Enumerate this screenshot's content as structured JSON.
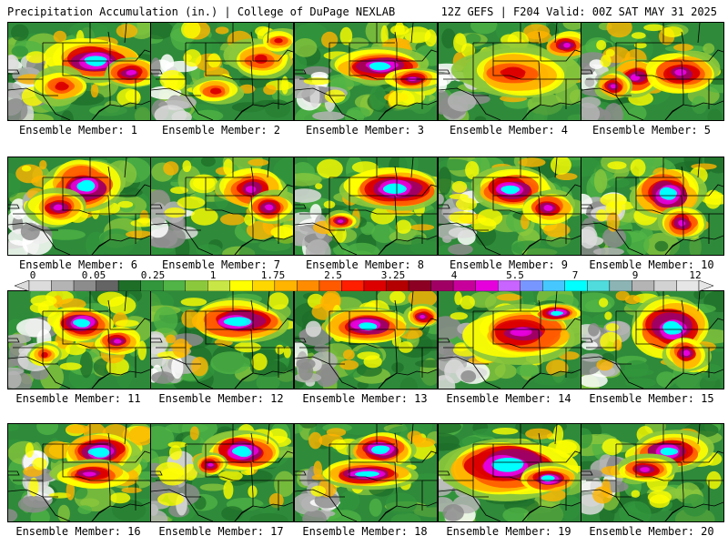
{
  "header": {
    "left": "Precipitation Accumulation (in.) | College of DuPage NEXLAB",
    "right": "12Z GEFS | F204 Valid: 00Z SAT MAY 31 2025"
  },
  "panels": [
    {
      "label": "Ensemble Member: 1"
    },
    {
      "label": "Ensemble Member: 2"
    },
    {
      "label": "Ensemble Member: 3"
    },
    {
      "label": "Ensemble Member: 4"
    },
    {
      "label": "Ensemble Member: 5"
    },
    {
      "label": "Ensemble Member: 6"
    },
    {
      "label": "Ensemble Member: 7"
    },
    {
      "label": "Ensemble Member: 8"
    },
    {
      "label": "Ensemble Member: 9"
    },
    {
      "label": "Ensemble Member: 10"
    },
    {
      "label": "Ensemble Member: 11"
    },
    {
      "label": "Ensemble Member: 12"
    },
    {
      "label": "Ensemble Member: 13"
    },
    {
      "label": "Ensemble Member: 14"
    },
    {
      "label": "Ensemble Member: 15"
    },
    {
      "label": "Ensemble Member: 16"
    },
    {
      "label": "Ensemble Member: 17"
    },
    {
      "label": "Ensemble Member: 18"
    },
    {
      "label": "Ensemble Member: 19"
    },
    {
      "label": "Ensemble Member: 20"
    }
  ],
  "colorbar": {
    "labels": [
      "0",
      "0.05",
      "0.25",
      "1",
      "1.75",
      "2.5",
      "3.25",
      "4",
      "5.5",
      "7",
      "9",
      "12"
    ],
    "colors": [
      "#dcdcdc",
      "#b4b4b4",
      "#8c8c8c",
      "#646464",
      "#1e6e28",
      "#32963c",
      "#50b446",
      "#8cc83c",
      "#c8e646",
      "#ffff00",
      "#ffd700",
      "#ffb400",
      "#ff8c00",
      "#ff5a00",
      "#ff1e00",
      "#dc0000",
      "#b40000",
      "#8c0023",
      "#a00064",
      "#c8009b",
      "#e600dc",
      "#c864ff",
      "#7896ff",
      "#46c8ff",
      "#00ffff",
      "#50dcdc",
      "#8cb4b4",
      "#b4b4b4",
      "#d2d2d2",
      "#e6e6e6"
    ]
  }
}
